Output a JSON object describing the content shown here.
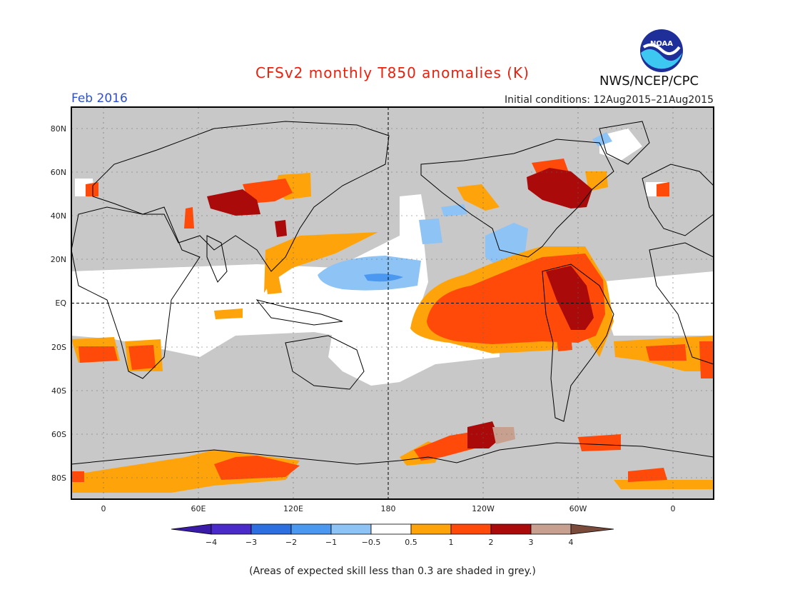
{
  "header": {
    "title": "CFSv2 monthly T850 anomalies (K)",
    "organization": "NWS/NCEP/CPC",
    "logo_text": "NOAA",
    "valid_month": "Feb 2016",
    "initial_conditions": "Initial conditions: 12Aug2015–21Aug2015"
  },
  "map": {
    "lat_labels": [
      "80N",
      "60N",
      "40N",
      "20N",
      "EQ",
      "20S",
      "40S",
      "60S",
      "80S"
    ],
    "lon_labels": [
      "0",
      "60E",
      "120E",
      "180",
      "120W",
      "60W",
      "0"
    ],
    "grid": true,
    "background_color": "#c8c8c8"
  },
  "colorbar": {
    "labels": [
      "−4",
      "−3",
      "−2",
      "−1",
      "−0.5",
      "0.5",
      "1",
      "2",
      "3",
      "4"
    ],
    "colors": [
      "#3a1aa8",
      "#4a4ad4",
      "#2d6fe0",
      "#4b98f0",
      "#8ec3f5",
      "#ffffff",
      "#ffa30a",
      "#ff4a0a",
      "#aa0a0a",
      "#c8a090",
      "#7a4a3a"
    ]
  },
  "footnote": "(Areas of expected skill less than 0.3 are shaded in grey.)"
}
